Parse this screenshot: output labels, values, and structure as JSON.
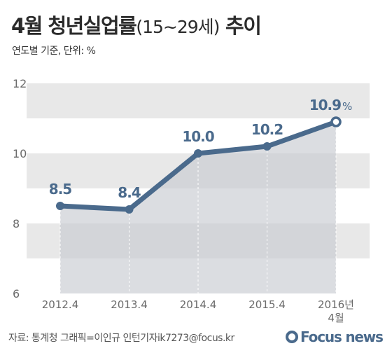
{
  "title": {
    "main": "4월 청년실업률",
    "paren": "(15~29세)",
    "tail": " 추이"
  },
  "subtitle": "연도별 기준, 단위: %",
  "footer": "자료: 통계청   그래픽=이인규 인턴기자ik7273@focus.kr",
  "logo": {
    "word": "Focus news",
    "mark": "focus-logo-icon"
  },
  "colors": {
    "line": "#4a6a8c",
    "band": "#e8e8e8",
    "area": "#c8cbd1",
    "axis_text": "#6b6b6b"
  },
  "chart_data": {
    "type": "line",
    "title": "4월 청년실업률(15~29세) 추이",
    "subtitle": "연도별 기준, 단위: %",
    "categories": [
      "2012.4",
      "2013.4",
      "2014.4",
      "2015.4",
      "2016년 4월"
    ],
    "series": [
      {
        "values": [
          8.5,
          8.4,
          10.0,
          10.2,
          10.9
        ]
      }
    ],
    "data_labels": [
      "8.5",
      "8.4",
      "10.0",
      "10.2",
      "10.9"
    ],
    "last_label_suffix": "%",
    "yticks": [
      6,
      8,
      10,
      12
    ],
    "ylim": [
      6,
      12
    ],
    "xlabel": "",
    "ylabel": "",
    "grid": "alternating horizontal bands",
    "legend": "none"
  }
}
